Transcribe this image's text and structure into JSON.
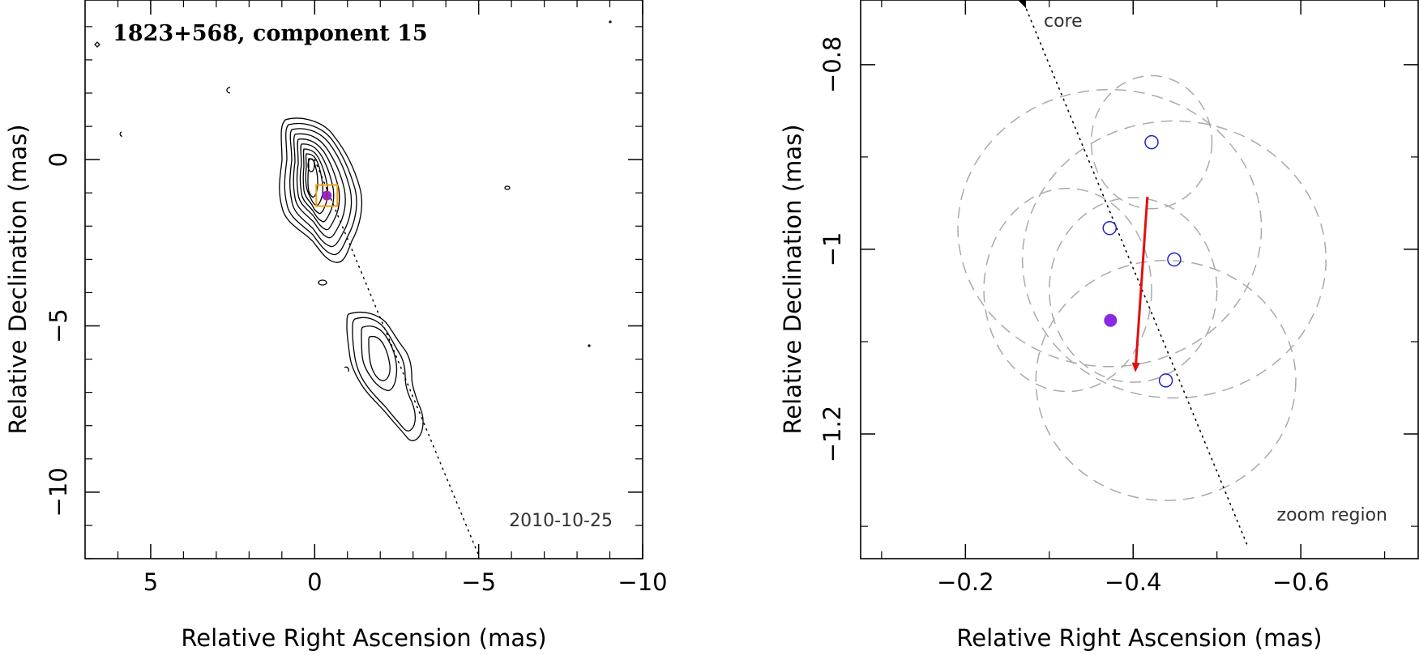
{
  "chart_data": [
    {
      "type": "contour",
      "title": "1823+568, component 15",
      "date": "2010-10-25",
      "xlabel": "Relative Right Ascension (mas)",
      "ylabel": "Relative Declination (mas)",
      "xlim": [
        7,
        -10
      ],
      "ylim": [
        -12,
        4.8
      ],
      "xticks": [
        5,
        0,
        -5,
        -10
      ],
      "xtick_labels": [
        "5",
        "0",
        "−5",
        "−10"
      ],
      "yticks": [
        0,
        -5,
        -10
      ],
      "ytick_labels": [
        "0",
        "−5",
        "−10"
      ],
      "component_position": [
        -0.37,
        -1.08
      ],
      "jet_axis": {
        "from": [
          0,
          0
        ],
        "to": [
          -5,
          -11.9
        ]
      },
      "colors": {
        "contour": "#000000",
        "zoom_box": "#f39c12",
        "component": "#8a2be2"
      }
    },
    {
      "type": "scatter",
      "xlabel": "Relative Right Ascension (mas)",
      "ylabel": "Relative Declination (mas)",
      "xlim": [
        -0.075,
        -0.74
      ],
      "ylim": [
        -1.335,
        -0.73
      ],
      "xticks": [
        -0.2,
        -0.4,
        -0.6
      ],
      "xtick_labels": [
        "−0.2",
        "−0.4",
        "−0.6"
      ],
      "yticks": [
        -0.8,
        -1.0,
        -1.2
      ],
      "ytick_labels": [
        "−0.8",
        "−1",
        "−1.2"
      ],
      "points": [
        {
          "x": -0.422,
          "y": -0.884
        },
        {
          "x": -0.372,
          "y": -0.977
        },
        {
          "x": -0.449,
          "y": -1.011
        },
        {
          "x": -0.439,
          "y": -1.142
        }
      ],
      "mean_point": {
        "x": -0.373,
        "y": -1.077
      },
      "ellipses": [
        {
          "cx": -0.422,
          "cy": -0.884,
          "rx": 0.072,
          "ry": 0.072
        },
        {
          "cx": -0.372,
          "cy": -0.977,
          "rx": 0.181,
          "ry": 0.15
        },
        {
          "cx": -0.449,
          "cy": -1.011,
          "rx": 0.181,
          "ry": 0.15
        },
        {
          "cx": -0.439,
          "cy": -1.142,
          "rx": 0.155,
          "ry": 0.13
        },
        {
          "cx": -0.322,
          "cy": -1.044,
          "rx": 0.1,
          "ry": 0.11
        },
        {
          "cx": -0.4,
          "cy": -1.044,
          "rx": 0.1,
          "ry": 0.1
        }
      ],
      "motion_vector": {
        "from": [
          -0.417,
          -0.943
        ],
        "to": [
          -0.403,
          -1.128
        ]
      },
      "core_direction_line": {
        "from": [
          -0.27,
          -0.734
        ],
        "to": [
          -0.536,
          -1.32
        ]
      },
      "labels": {
        "core": "core",
        "zoom": "zoom region"
      },
      "colors": {
        "points": "#2222cc",
        "mean": "#8a2be2",
        "vector": "#e01010",
        "ellipses": "#aaaaaa"
      }
    }
  ]
}
